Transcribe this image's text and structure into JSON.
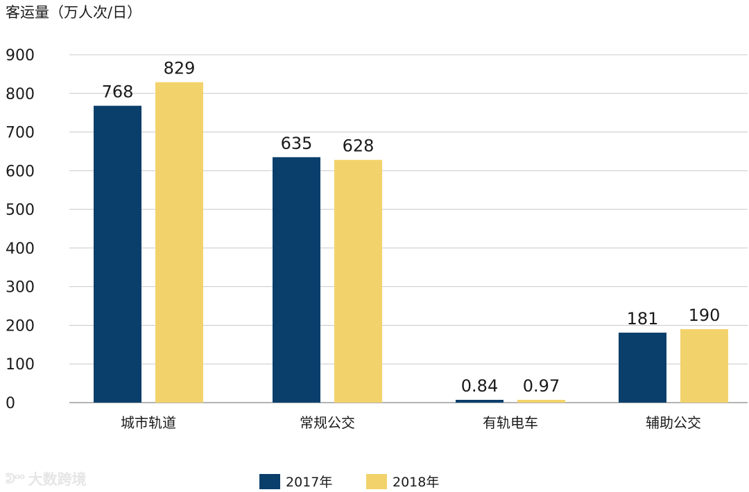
{
  "chart_data": {
    "type": "bar",
    "ylabel": "客运量（万人次/日）",
    "categories": [
      "城市轨道",
      "常规公交",
      "有轨电车",
      "辅助公交"
    ],
    "series": [
      {
        "name": "2017年",
        "color": "#0b3f6b",
        "values": [
          768,
          635,
          0.84,
          181
        ],
        "labels": [
          "768",
          "635",
          "0.84",
          "181"
        ]
      },
      {
        "name": "2018年",
        "color": "#f2d36b",
        "values": [
          829,
          628,
          0.97,
          190
        ],
        "labels": [
          "829",
          "628",
          "0.97",
          "190"
        ]
      }
    ],
    "ylim": [
      0,
      900
    ],
    "yticks": [
      0,
      100,
      200,
      300,
      400,
      500,
      600,
      700,
      800,
      900
    ],
    "grid": true,
    "legend": "bottom-center"
  },
  "watermark": {
    "logo": "ᕲᵒᵒ",
    "text": "大数跨境"
  }
}
